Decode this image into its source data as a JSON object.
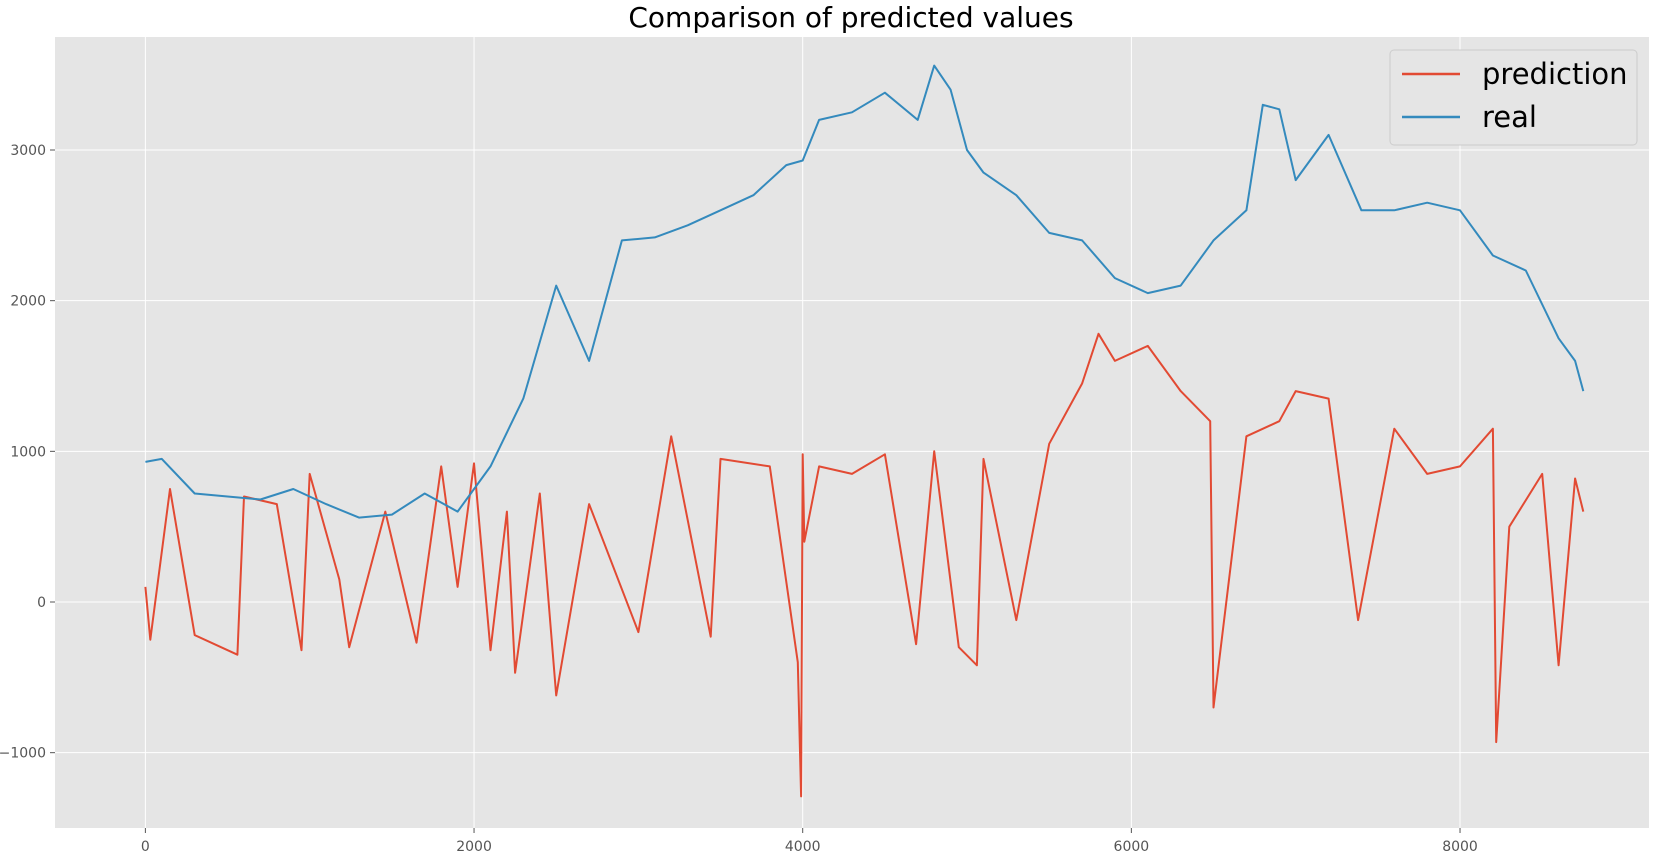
{
  "chart_data": {
    "type": "line",
    "title": "Comparison of predicted values",
    "xlabel": "",
    "ylabel": "",
    "xlim": [
      -550,
      9150
    ],
    "ylim": [
      -1500,
      3750
    ],
    "x_ticks": [
      0,
      2000,
      4000,
      6000,
      8000
    ],
    "y_ticks": [
      -1000,
      0,
      1000,
      2000,
      3000
    ],
    "x_tick_labels": [
      "0",
      "2000",
      "4000",
      "6000",
      "8000"
    ],
    "y_tick_labels": [
      "−1000",
      "0",
      "1000",
      "2000",
      "3000"
    ],
    "grid": true,
    "legend_position": "top-right",
    "style": {
      "background": "#e5e5e5",
      "grid_color": "#ffffff",
      "prediction_color": "#e24a33",
      "real_color": "#348abd"
    },
    "series": [
      {
        "name": "prediction",
        "color": "#e24a33",
        "x": [
          0,
          30,
          150,
          300,
          560,
          600,
          800,
          950,
          1000,
          1180,
          1240,
          1460,
          1650,
          1800,
          1900,
          2000,
          2100,
          2200,
          2250,
          2400,
          2500,
          2700,
          3000,
          3200,
          3440,
          3500,
          3800,
          3970,
          3990,
          4000,
          4010,
          4100,
          4300,
          4500,
          4690,
          4800,
          4950,
          5060,
          5100,
          5300,
          5500,
          5700,
          5800,
          5900,
          6100,
          6300,
          6480,
          6500,
          6700,
          6900,
          7000,
          7200,
          7380,
          7600,
          7800,
          8000,
          8200,
          8220,
          8300,
          8500,
          8600,
          8700,
          8750
        ],
        "values": [
          100,
          -250,
          750,
          -220,
          -350,
          700,
          650,
          -320,
          850,
          150,
          -300,
          600,
          -270,
          900,
          100,
          920,
          -320,
          600,
          -470,
          720,
          -620,
          650,
          -200,
          1100,
          -230,
          950,
          900,
          -400,
          -1290,
          980,
          400,
          900,
          850,
          980,
          -280,
          1000,
          -300,
          -420,
          950,
          -120,
          1050,
          1450,
          1780,
          1600,
          1700,
          1400,
          1200,
          -700,
          1100,
          1200,
          1400,
          1350,
          -120,
          1150,
          850,
          900,
          1150,
          -930,
          500,
          850,
          -420,
          820,
          600
        ]
      },
      {
        "name": "real",
        "color": "#348abd",
        "x": [
          0,
          100,
          300,
          500,
          700,
          900,
          1100,
          1300,
          1500,
          1700,
          1900,
          2100,
          2300,
          2500,
          2700,
          2900,
          3100,
          3300,
          3500,
          3700,
          3900,
          4000,
          4100,
          4300,
          4500,
          4700,
          4800,
          4900,
          5000,
          5100,
          5300,
          5500,
          5700,
          5900,
          6100,
          6300,
          6500,
          6700,
          6800,
          6900,
          7000,
          7200,
          7400,
          7600,
          7800,
          8000,
          8200,
          8400,
          8600,
          8700,
          8750
        ],
        "values": [
          930,
          950,
          720,
          700,
          680,
          750,
          650,
          560,
          580,
          720,
          600,
          900,
          1350,
          2100,
          1600,
          2400,
          2420,
          2500,
          2600,
          2700,
          2900,
          2930,
          3200,
          3250,
          3380,
          3200,
          3560,
          3400,
          3000,
          2850,
          2700,
          2450,
          2400,
          2150,
          2050,
          2100,
          2400,
          2600,
          3300,
          3270,
          2800,
          3100,
          2600,
          2600,
          2650,
          2600,
          2300,
          2200,
          1750,
          1600,
          1400
        ]
      }
    ]
  }
}
